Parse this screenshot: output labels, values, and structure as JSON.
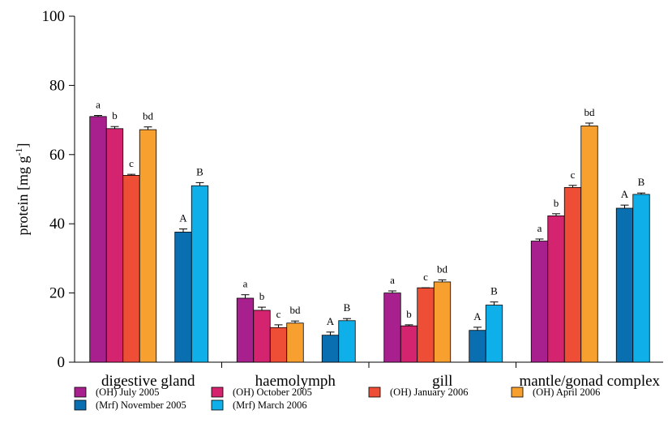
{
  "chart_data": {
    "type": "bar",
    "ylabel": "protein [mg g",
    "ylabel_sup": "-1",
    "ylabel_close": "]",
    "ylim": [
      0,
      100
    ],
    "yticks": [
      0,
      20,
      40,
      60,
      80,
      100
    ],
    "grid": false,
    "legend_position": "bottom",
    "categories": [
      "digestive gland",
      "haemolymph",
      "gill",
      "mantle/gonad complex"
    ],
    "series": [
      {
        "name": "(OH) July 2005",
        "color": "#a8208e",
        "group": "OH",
        "values": [
          71,
          18.5,
          20,
          35
        ],
        "errors": [
          0.3,
          1.0,
          0.6,
          0.6
        ],
        "labels": [
          "a",
          "a",
          "a",
          "a"
        ]
      },
      {
        "name": "(OH) October 2005",
        "color": "#d4236f",
        "group": "OH",
        "values": [
          67.5,
          15,
          10.5,
          42.3
        ],
        "errors": [
          0.6,
          0.9,
          0.3,
          0.6
        ],
        "labels": [
          "b",
          "b",
          "b",
          "b"
        ]
      },
      {
        "name": "(OH) January 2006",
        "color": "#ef4e36",
        "group": "OH",
        "values": [
          54,
          10,
          21.5,
          50.5
        ],
        "errors": [
          0.3,
          0.8,
          0.0,
          0.6
        ],
        "labels": [
          "c",
          "c",
          "c",
          "c"
        ]
      },
      {
        "name": "(OH) April 2006",
        "color": "#f7a030",
        "group": "OH",
        "values": [
          67.2,
          11.3,
          23.2,
          68.3
        ],
        "errors": [
          0.8,
          0.6,
          0.6,
          0.8
        ],
        "labels": [
          "bd",
          "bd",
          "bd",
          "bd"
        ]
      },
      {
        "name": "(Mrf) November 2005",
        "color": "#0a6fb0",
        "group": "Mrf",
        "values": [
          37.6,
          7.8,
          9.2,
          44.5
        ],
        "errors": [
          0.9,
          0.9,
          0.9,
          0.9
        ],
        "labels": [
          "A",
          "A",
          "A",
          "A"
        ]
      },
      {
        "name": "(Mrf) March 2006",
        "color": "#0fb0ea",
        "group": "Mrf",
        "values": [
          51,
          12,
          16.5,
          48.5
        ],
        "errors": [
          0.9,
          0.6,
          0.9,
          0.4
        ],
        "labels": [
          "B",
          "B",
          "B",
          "B"
        ]
      }
    ]
  }
}
